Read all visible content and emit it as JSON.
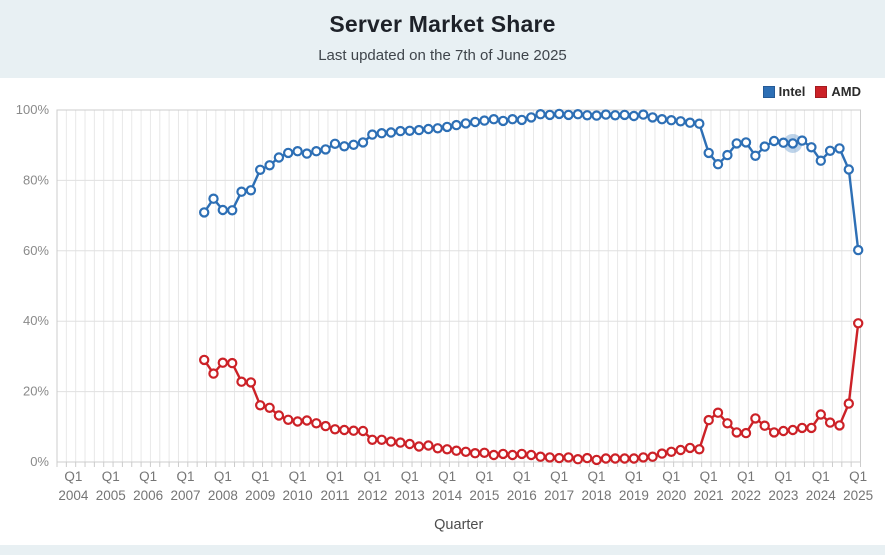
{
  "header": {
    "title": "Server Market Share",
    "subtitle": "Last updated on the 7th of June 2025"
  },
  "legend": {
    "items": [
      {
        "label": "Intel",
        "color": "#2d6fb5",
        "border": "#255a96"
      },
      {
        "label": "AMD",
        "color": "#cc2127",
        "border": "#a31b20"
      }
    ]
  },
  "chart_data": {
    "type": "line",
    "title": "Server Market Share",
    "subtitle": "Last updated on the 7th of June 2025",
    "xlabel": "Quarter",
    "ylabel": "",
    "ylim": [
      0,
      100
    ],
    "y_ticks": [
      "0%",
      "20%",
      "40%",
      "60%",
      "80%",
      "100%"
    ],
    "grid": "on",
    "legend_position": "top-right",
    "x_years": [
      2004,
      2005,
      2006,
      2007,
      2008,
      2009,
      2010,
      2011,
      2012,
      2013,
      2014,
      2015,
      2016,
      2017,
      2018,
      2019,
      2020,
      2021,
      2022,
      2023,
      2024,
      2025
    ],
    "x_tick_quarter_label": "Q1",
    "series_start_quarter": "2007-Q3",
    "start_index_from_2004Q1": 14,
    "series": [
      {
        "name": "Intel",
        "color": "#2d6fb5",
        "values": [
          70.9,
          74.8,
          71.6,
          71.5,
          76.8,
          77.2,
          83.0,
          84.3,
          86.5,
          87.8,
          88.3,
          87.6,
          88.3,
          88.8,
          90.4,
          89.7,
          90.1,
          90.8,
          93.0,
          93.4,
          93.6,
          94.0,
          94.1,
          94.3,
          94.6,
          94.8,
          95.2,
          95.7,
          96.2,
          96.6,
          97.0,
          97.4,
          96.9,
          97.4,
          97.2,
          97.9,
          98.8,
          98.6,
          98.9,
          98.6,
          98.8,
          98.5,
          98.4,
          98.7,
          98.5,
          98.6,
          98.3,
          98.7,
          97.9,
          97.4,
          97.1,
          96.8,
          96.4,
          96.1,
          87.8,
          84.6,
          87.2,
          90.5,
          90.8,
          87.0,
          89.6,
          91.2,
          90.7,
          90.5,
          91.3,
          89.4,
          85.6,
          88.4,
          89.1,
          83.1,
          60.2
        ]
      },
      {
        "name": "AMD",
        "color": "#cc2127",
        "values": [
          29.0,
          25.1,
          28.2,
          28.1,
          22.8,
          22.6,
          16.1,
          15.4,
          13.2,
          12.0,
          11.5,
          11.8,
          11.0,
          10.2,
          9.3,
          9.1,
          8.9,
          8.8,
          6.3,
          6.3,
          5.8,
          5.5,
          5.1,
          4.4,
          4.7,
          3.9,
          3.6,
          3.2,
          2.9,
          2.5,
          2.6,
          2.0,
          2.3,
          2.0,
          2.3,
          2.0,
          1.5,
          1.3,
          1.1,
          1.3,
          0.8,
          1.1,
          0.6,
          1.0,
          1.0,
          1.0,
          1.0,
          1.3,
          1.5,
          2.4,
          2.9,
          3.4,
          4.0,
          3.6,
          11.9,
          14.0,
          11.0,
          8.4,
          8.2,
          12.4,
          10.3,
          8.4,
          8.8,
          9.1,
          9.7,
          9.7,
          13.5,
          11.2,
          10.4,
          16.6,
          39.4
        ]
      }
    ],
    "highlight": {
      "series": "Intel",
      "series_index": 0,
      "point_index": 63,
      "quarter": "2023-Q2",
      "value": 90.5
    }
  },
  "colors": {
    "header_bg": "#e8f0f3",
    "plot_bg": "#ffffff",
    "grid_vertical": "#e8e8e8",
    "grid_horizontal": "#e0e0e0",
    "axis_border": "#cccccc",
    "tick_text": "#8a8a8a",
    "axis_label_text": "#4d4d4d",
    "marker_fill": "#ffffff",
    "highlight_halo": "rgba(93,148,203,0.40)"
  }
}
